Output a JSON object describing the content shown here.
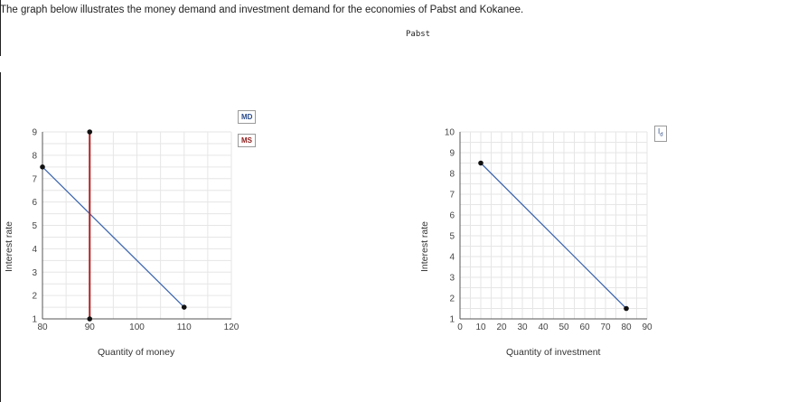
{
  "intro": "The graph below illustrates the money demand and investment demand for the economies of Pabst and Kokanee.",
  "economy_title": "Pabst",
  "chart_data": [
    {
      "type": "line",
      "xlabel": "Quantity of money",
      "ylabel": "Interest rate",
      "xlim": [
        80,
        120
      ],
      "ylim": [
        1,
        9
      ],
      "x_ticks": [
        "80",
        "90",
        "100",
        "110",
        "120"
      ],
      "y_ticks": [
        "1",
        "2",
        "3",
        "4",
        "5",
        "6",
        "7",
        "8",
        "9"
      ],
      "grid": true,
      "series": [
        {
          "name": "MD",
          "color": "#4169b0",
          "points": [
            [
              80,
              7.5
            ],
            [
              110,
              1.5
            ]
          ]
        },
        {
          "name": "MS",
          "color": "#b22222",
          "points": [
            [
              90,
              9
            ],
            [
              90,
              1
            ]
          ]
        }
      ]
    },
    {
      "type": "line",
      "xlabel": "Quantity of investment",
      "ylabel": "Interest rate",
      "xlim": [
        0,
        90
      ],
      "ylim": [
        1,
        10
      ],
      "x_ticks": [
        "0",
        "10",
        "20",
        "30",
        "40",
        "50",
        "60",
        "70",
        "80",
        "90"
      ],
      "y_ticks": [
        "1",
        "2",
        "3",
        "4",
        "5",
        "6",
        "7",
        "8",
        "9",
        "10"
      ],
      "grid": true,
      "series": [
        {
          "name": "I_d",
          "color": "#4169b0",
          "points": [
            [
              10,
              8.5
            ],
            [
              80,
              1.5
            ]
          ]
        }
      ]
    }
  ]
}
